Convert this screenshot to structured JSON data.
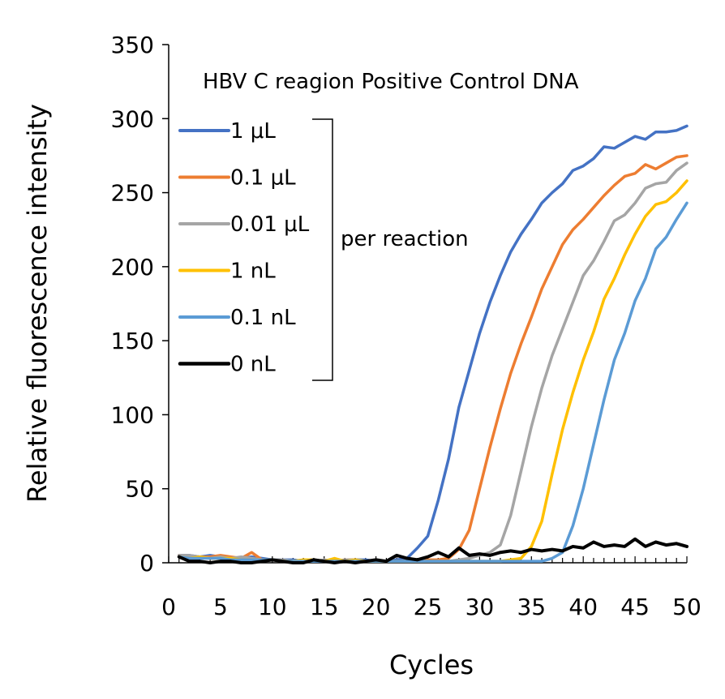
{
  "chart_data": {
    "type": "line",
    "title": "HBV C reagion Positive Control DNA",
    "xlabel": "Cycles",
    "ylabel": "Relative fluorescence intensity",
    "xlim": [
      0,
      50
    ],
    "ylim": [
      0,
      350
    ],
    "x_ticks": [
      "0",
      "5",
      "10",
      "15",
      "20",
      "25",
      "30",
      "35",
      "40",
      "45",
      "50"
    ],
    "y_ticks": [
      "0",
      "50",
      "100",
      "150",
      "200",
      "250",
      "300",
      "350"
    ],
    "grid": false,
    "legend_position": "top-left",
    "legend_note": "per reaction",
    "x": [
      1,
      2,
      3,
      4,
      5,
      6,
      7,
      8,
      9,
      10,
      11,
      12,
      13,
      14,
      15,
      16,
      17,
      18,
      19,
      20,
      21,
      22,
      23,
      24,
      25,
      26,
      27,
      28,
      29,
      30,
      31,
      32,
      33,
      34,
      35,
      36,
      37,
      38,
      39,
      40,
      41,
      42,
      43,
      44,
      45,
      46,
      47,
      48,
      49,
      50
    ],
    "series": [
      {
        "name": "1 μL",
        "color": "#4472C4",
        "values": [
          5,
          5,
          4,
          5,
          4,
          3,
          3,
          4,
          3,
          2,
          2,
          2,
          1,
          2,
          1,
          2,
          1,
          2,
          2,
          1,
          1,
          2,
          3,
          10,
          18,
          42,
          70,
          105,
          130,
          155,
          176,
          194,
          210,
          222,
          232,
          243,
          250,
          256,
          265,
          268,
          273,
          281,
          280,
          284,
          288,
          286,
          291,
          291,
          292,
          295
        ]
      },
      {
        "name": "0.1 μL",
        "color": "#ED7D31",
        "values": [
          5,
          4,
          4,
          4,
          5,
          4,
          3,
          7,
          2,
          2,
          1,
          1,
          1,
          2,
          1,
          1,
          2,
          2,
          1,
          1,
          1,
          1,
          1,
          1,
          2,
          2,
          3,
          9,
          22,
          50,
          78,
          104,
          128,
          148,
          166,
          185,
          200,
          215,
          225,
          232,
          240,
          248,
          255,
          261,
          263,
          269,
          266,
          270,
          274,
          275
        ]
      },
      {
        "name": "0.01 μL",
        "color": "#A5A5A5",
        "values": [
          5,
          5,
          4,
          3,
          4,
          3,
          4,
          3,
          2,
          2,
          2,
          1,
          2,
          1,
          2,
          1,
          2,
          2,
          1,
          1,
          1,
          1,
          1,
          1,
          1,
          1,
          1,
          2,
          3,
          5,
          7,
          12,
          32,
          62,
          92,
          118,
          140,
          158,
          176,
          194,
          204,
          217,
          231,
          235,
          243,
          253,
          256,
          257,
          265,
          270
        ]
      },
      {
        "name": "1 nL",
        "color": "#FFC000",
        "values": [
          4,
          3,
          4,
          3,
          3,
          3,
          2,
          2,
          2,
          2,
          1,
          1,
          2,
          2,
          1,
          3,
          1,
          2,
          1,
          1,
          1,
          1,
          1,
          1,
          1,
          1,
          1,
          1,
          1,
          1,
          1,
          1,
          2,
          3,
          11,
          28,
          60,
          90,
          115,
          137,
          156,
          178,
          192,
          208,
          222,
          234,
          242,
          244,
          250,
          258
        ]
      },
      {
        "name": "0.1 nL",
        "color": "#5B9BD5",
        "values": [
          4,
          3,
          3,
          3,
          3,
          2,
          2,
          2,
          2,
          2,
          1,
          1,
          1,
          1,
          1,
          1,
          1,
          1,
          1,
          1,
          1,
          1,
          1,
          1,
          1,
          1,
          1,
          1,
          1,
          1,
          1,
          1,
          1,
          1,
          1,
          1,
          3,
          7,
          25,
          50,
          80,
          110,
          137,
          155,
          177,
          192,
          212,
          220,
          232,
          243
        ]
      },
      {
        "name": "0 nL",
        "color": "#000000",
        "values": [
          4,
          1,
          1,
          0,
          1,
          1,
          0,
          0,
          1,
          2,
          1,
          0,
          0,
          2,
          1,
          0,
          1,
          0,
          1,
          2,
          1,
          5,
          3,
          2,
          4,
          7,
          4,
          10,
          5,
          6,
          5,
          7,
          8,
          7,
          9,
          8,
          9,
          8,
          11,
          10,
          14,
          11,
          12,
          11,
          16,
          11,
          14,
          12,
          13,
          11
        ]
      }
    ]
  }
}
